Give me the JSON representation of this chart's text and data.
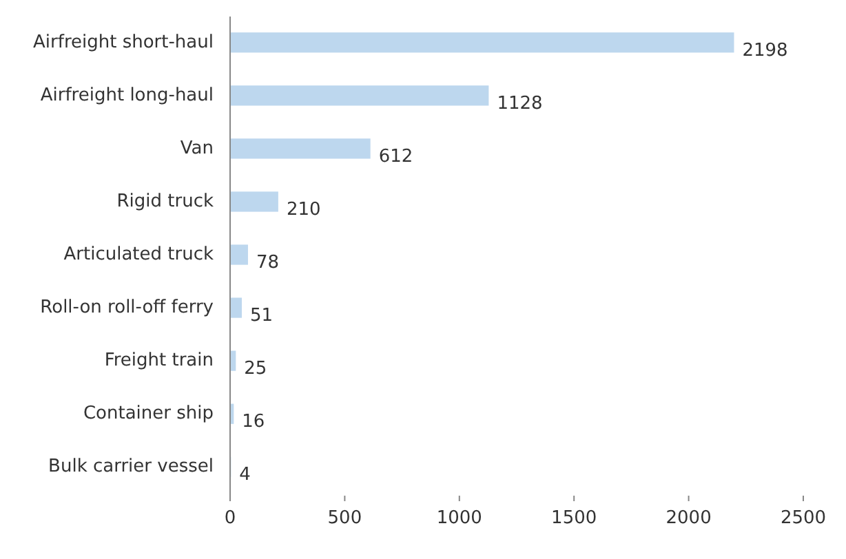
{
  "chart_data": {
    "type": "bar",
    "orientation": "horizontal",
    "categories": [
      "Airfreight short-haul",
      "Airfreight long-haul",
      "Van",
      "Rigid truck",
      "Articulated truck",
      "Roll-on roll-off ferry",
      "Freight train",
      "Container ship",
      "Bulk carrier vessel"
    ],
    "values": [
      2198,
      1128,
      612,
      210,
      78,
      51,
      25,
      16,
      4
    ],
    "color": "#bdd7ee",
    "xlim": [
      0,
      2500
    ],
    "xticks": [
      0,
      500,
      1000,
      1500,
      2000,
      2500
    ],
    "data_labels": true
  }
}
